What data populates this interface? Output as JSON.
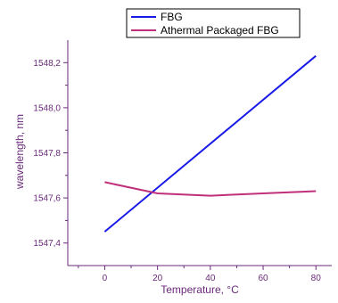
{
  "chart_data": {
    "type": "line",
    "title": "",
    "xlabel": "Temperature, °C",
    "ylabel": "wavelength, nm",
    "xlim": [
      -14,
      86
    ],
    "ylim": [
      1547.3,
      1548.3
    ],
    "xticks": [
      0,
      20,
      40,
      60,
      80
    ],
    "xtick_labels": [
      "0",
      "20",
      "40",
      "60",
      "80"
    ],
    "yticks": [
      1547.4,
      1547.6,
      1547.8,
      1548.0,
      1548.2
    ],
    "ytick_labels": [
      "1547,4",
      "1547,6",
      "1547,8",
      "1548,0",
      "1548,2"
    ],
    "legend_position": "top",
    "grid": false,
    "series": [
      {
        "name": "FBG",
        "color": "#1a1ae6",
        "x": [
          0,
          80
        ],
        "y": [
          1547.45,
          1548.23
        ]
      },
      {
        "name": "Athermal Packaged FBG",
        "color": "#c0307a",
        "x": [
          0,
          20,
          40,
          60,
          80
        ],
        "y": [
          1547.67,
          1547.62,
          1547.61,
          1547.62,
          1547.63
        ]
      }
    ]
  }
}
